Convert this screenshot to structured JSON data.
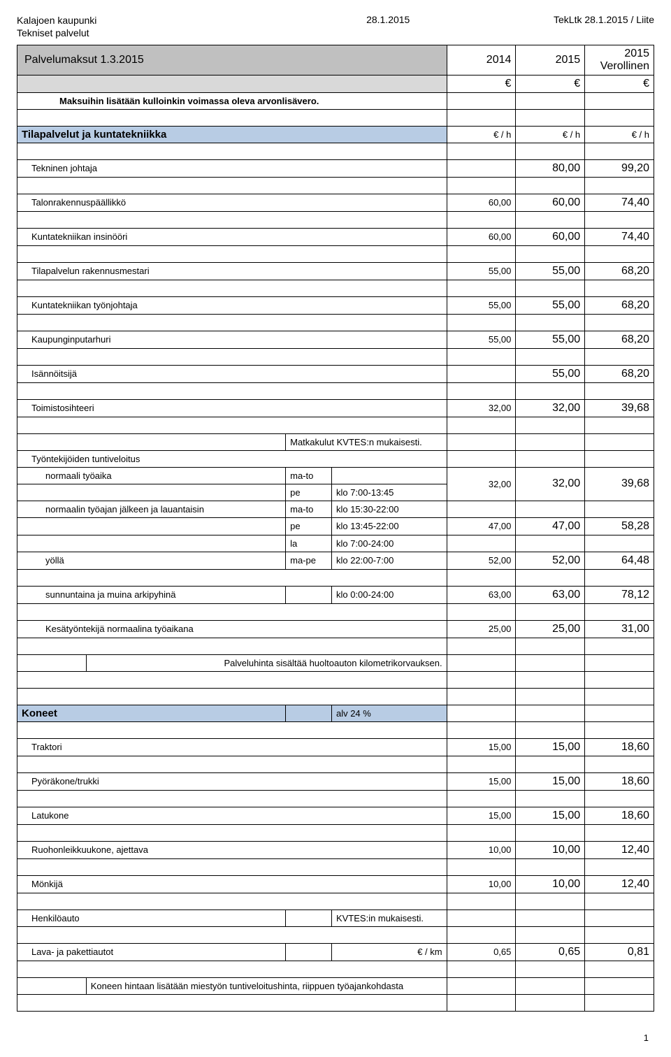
{
  "header": {
    "org": "Kalajoen kaupunki",
    "dept": "Tekniset palvelut",
    "date": "28.1.2015",
    "ref": "TekLtk 28.1.2015 / Liite"
  },
  "title_row": {
    "title": "Palvelumaksut 1.3.2015",
    "col1": "2014",
    "col2": "2015",
    "col3": "2015\nVerollinen"
  },
  "euro": "€",
  "note_arvon": "Maksuihin lisätään kulloinkin voimassa oleva arvonlisävero.",
  "section1": {
    "title": "Tilapalvelut ja kuntatekniikka",
    "unit": "€ / h",
    "rows": [
      {
        "label": "Tekninen johtaja",
        "c1": "",
        "c2": "80,00",
        "c3": "99,20"
      },
      {
        "label": "Talonrakennuspäällikkö",
        "c1": "60,00",
        "c2": "60,00",
        "c3": "74,40"
      },
      {
        "label": "Kuntatekniikan insinööri",
        "c1": "60,00",
        "c2": "60,00",
        "c3": "74,40"
      },
      {
        "label": "Tilapalvelun rakennusmestari",
        "c1": "55,00",
        "c2": "55,00",
        "c3": "68,20"
      },
      {
        "label": "Kuntatekniikan työnjohtaja",
        "c1": "55,00",
        "c2": "55,00",
        "c3": "68,20"
      },
      {
        "label": "Kaupunginputarhuri",
        "c1": "55,00",
        "c2": "55,00",
        "c3": "68,20"
      },
      {
        "label": "Isännöitsijä",
        "c1": "",
        "c2": "55,00",
        "c3": "68,20"
      },
      {
        "label": "Toimistosihteeri",
        "c1": "32,00",
        "c2": "32,00",
        "c3": "39,68"
      }
    ],
    "matkakulut": "Matkakulut KVTES:n mukaisesti.",
    "tuntiveloitus": "Työntekijöiden tuntiveloitus",
    "norm_work": {
      "label": "normaali työaika",
      "ma_to": "ma-to",
      "pe": "pe",
      "pe_time": "klo 7:00-13:45",
      "c1": "32,00",
      "c2": "32,00",
      "c3": "39,68"
    },
    "after_work": {
      "label": "normaalin työajan jälkeen ja lauantaisin",
      "ma_to": "ma-to",
      "ma_to_time": "klo 15:30-22:00",
      "pe": "pe",
      "pe_time": "klo 13:45-22:00",
      "la": "la",
      "la_time": "klo 7:00-24:00",
      "c1": "47,00",
      "c2": "47,00",
      "c3": "58,28"
    },
    "yolla": {
      "label": "yöllä",
      "day": "ma-pe",
      "time": "klo 22:00-7:00",
      "c1": "52,00",
      "c2": "52,00",
      "c3": "64,48"
    },
    "sunnun": {
      "label": "sunnuntaina ja muina arkipyhinä",
      "time": "klo 0:00-24:00",
      "c1": "63,00",
      "c2": "63,00",
      "c3": "78,12"
    },
    "kesa": {
      "label": "Kesätyöntekijä normaalina työaikana",
      "c1": "25,00",
      "c2": "25,00",
      "c3": "31,00"
    },
    "palveluhinta": "Palveluhinta sisältää  huoltoauton kilometrikorvauksen."
  },
  "section2": {
    "title": "Koneet",
    "alv": "alv 24 %",
    "rows": [
      {
        "label": "Traktori",
        "c1": "15,00",
        "c2": "15,00",
        "c3": "18,60"
      },
      {
        "label": "Pyöräkone/trukki",
        "c1": "15,00",
        "c2": "15,00",
        "c3": "18,60"
      },
      {
        "label": "Latukone",
        "c1": "15,00",
        "c2": "15,00",
        "c3": "18,60"
      },
      {
        "label": "Ruohonleikkuukone, ajettava",
        "c1": "10,00",
        "c2": "10,00",
        "c3": "12,40"
      },
      {
        "label": "Mönkijä",
        "c1": "10,00",
        "c2": "10,00",
        "c3": "12,40"
      }
    ],
    "henkiloauto": {
      "label": "Henkilöauto",
      "note": "KVTES:in mukaisesti."
    },
    "lava": {
      "label": "Lava- ja pakettiautot",
      "unit": "€ / km",
      "c1": "0,65",
      "c2": "0,65",
      "c3": "0,81"
    },
    "koneen_note": "Koneen hintaan lisätään miestyön tuntiveloitushinta, riippuen työajankohdasta"
  },
  "page": "1",
  "colwidths": [
    "90px",
    "260px",
    "60px",
    "150px",
    "90px",
    "90px",
    "90px"
  ],
  "colors": {
    "grey": "#c0c0c0",
    "ltgrey": "#d9d9d9",
    "blue": "#b8cce4"
  }
}
